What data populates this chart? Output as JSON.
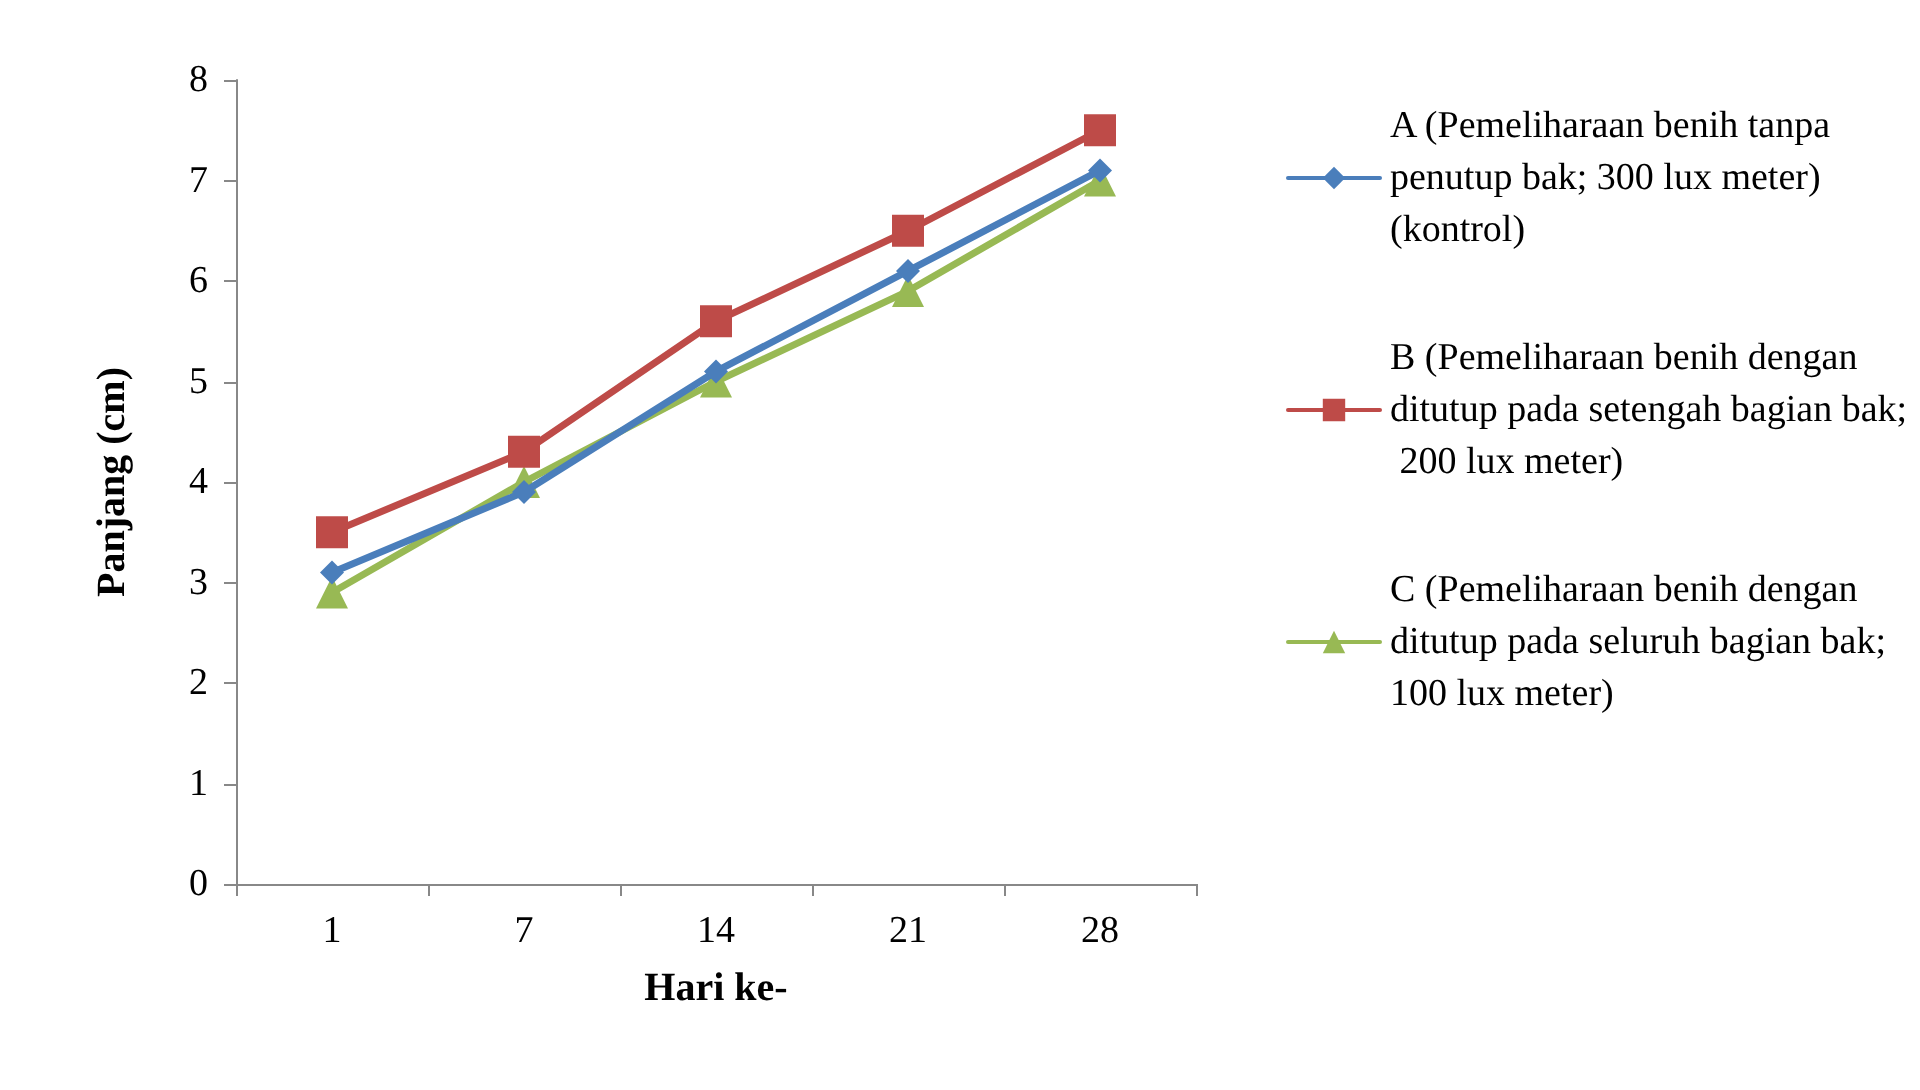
{
  "chart_data": {
    "type": "line",
    "xlabel": "Hari ke-",
    "ylabel": "Panjang (cm)",
    "categories": [
      "1",
      "7",
      "14",
      "21",
      "28"
    ],
    "series": [
      {
        "name": "A (Pemeliharaan benih tanpa penutup bak; 300 lux meter) (kontrol)",
        "color": "#4a7ebb",
        "marker": "diamond",
        "values": [
          3.1,
          3.9,
          5.1,
          6.1,
          7.1
        ]
      },
      {
        "name": "B (Pemeliharaan benih dengan ditutup pada setengah bagian bak; 200 lux meter)",
        "color": "#be4b48",
        "marker": "square",
        "values": [
          3.5,
          4.3,
          5.6,
          6.5,
          7.5
        ]
      },
      {
        "name": "C (Pemeliharaan benih dengan ditutup pada seluruh bagian bak; 100 lux meter)",
        "color": "#98b954",
        "marker": "triangle",
        "values": [
          2.9,
          4.0,
          5.0,
          5.9,
          7.0
        ]
      }
    ],
    "ylim": [
      0,
      8
    ],
    "yticks": [
      0,
      1,
      2,
      3,
      4,
      5,
      6,
      7,
      8
    ],
    "grid": false,
    "legend": "right",
    "line_style": "solid"
  }
}
